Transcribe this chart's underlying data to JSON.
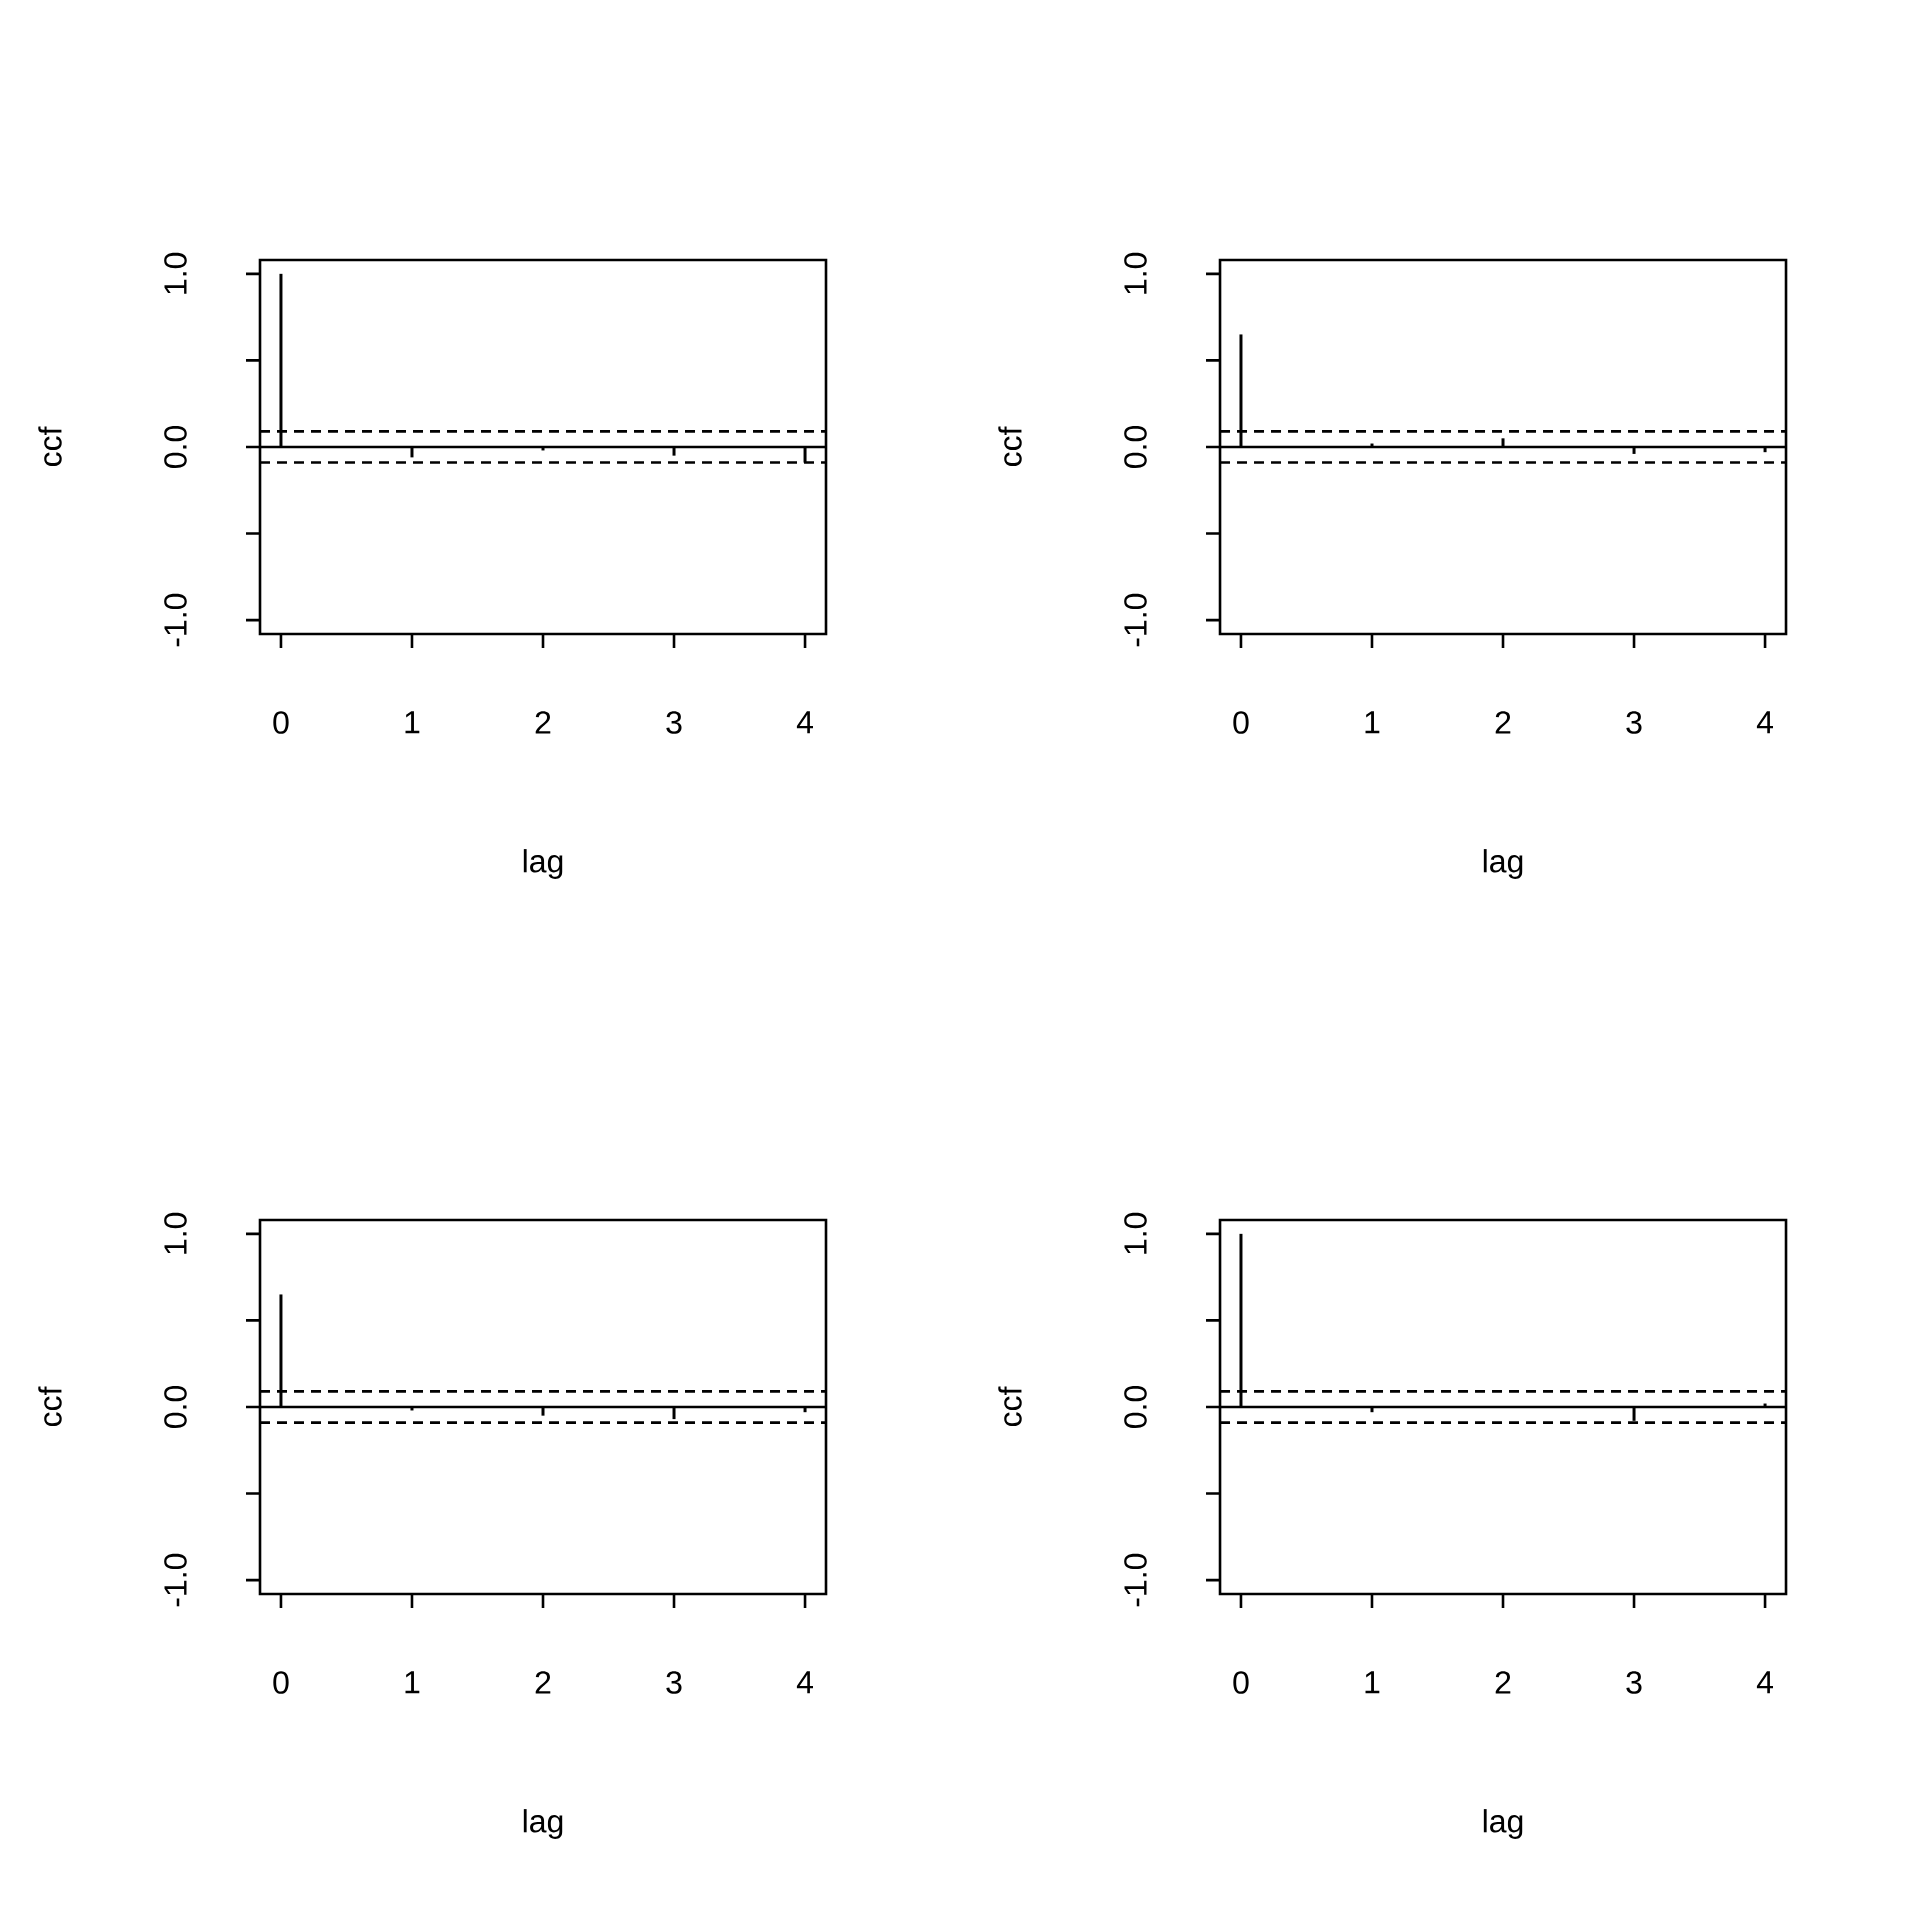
{
  "chart_data": [
    {
      "type": "bar",
      "x": [
        0,
        1,
        2,
        3,
        4
      ],
      "values": [
        1.0,
        -0.06,
        -0.02,
        -0.05,
        -0.09
      ],
      "color": "#000000",
      "xlim": [
        -0.16,
        4.16
      ],
      "xticks": [
        0,
        1,
        2,
        3,
        4
      ],
      "ylim": [
        -1.08,
        1.08
      ],
      "yticks": [
        {
          "value": -1,
          "label": "-1.0"
        },
        {
          "value": -0.5,
          "label": null
        },
        {
          "value": 0,
          "label": "0.0"
        },
        {
          "value": 0.5,
          "label": null
        },
        {
          "value": 1,
          "label": "1.0"
        }
      ],
      "xlabel": "lag",
      "ylabel": "ccf",
      "ref_lines": [
        {
          "axis": "y",
          "value": 0,
          "line_style": "solid"
        },
        {
          "axis": "y",
          "value": 0.09,
          "line_style": "dashed"
        },
        {
          "axis": "y",
          "value": -0.09,
          "line_style": "dashed"
        }
      ]
    },
    {
      "type": "bar",
      "x": [
        0,
        1,
        2,
        3,
        4
      ],
      "values": [
        0.65,
        0.02,
        0.05,
        -0.04,
        -0.03
      ],
      "color": "#000000",
      "xlim": [
        -0.16,
        4.16
      ],
      "xticks": [
        0,
        1,
        2,
        3,
        4
      ],
      "ylim": [
        -1.08,
        1.08
      ],
      "yticks": [
        {
          "value": -1,
          "label": "-1.0"
        },
        {
          "value": -0.5,
          "label": null
        },
        {
          "value": 0,
          "label": "0.0"
        },
        {
          "value": 0.5,
          "label": null
        },
        {
          "value": 1,
          "label": "1.0"
        }
      ],
      "xlabel": "lag",
      "ylabel": "ccf",
      "ref_lines": [
        {
          "axis": "y",
          "value": 0,
          "line_style": "solid"
        },
        {
          "axis": "y",
          "value": 0.09,
          "line_style": "dashed"
        },
        {
          "axis": "y",
          "value": -0.09,
          "line_style": "dashed"
        }
      ]
    },
    {
      "type": "bar",
      "x": [
        0,
        1,
        2,
        3,
        4
      ],
      "values": [
        0.65,
        -0.02,
        -0.05,
        -0.07,
        -0.03
      ],
      "color": "#000000",
      "xlim": [
        -0.16,
        4.16
      ],
      "xticks": [
        0,
        1,
        2,
        3,
        4
      ],
      "ylim": [
        -1.08,
        1.08
      ],
      "yticks": [
        {
          "value": -1,
          "label": "-1.0"
        },
        {
          "value": -0.5,
          "label": null
        },
        {
          "value": 0,
          "label": "0.0"
        },
        {
          "value": 0.5,
          "label": null
        },
        {
          "value": 1,
          "label": "1.0"
        }
      ],
      "xlabel": "lag",
      "ylabel": "ccf",
      "ref_lines": [
        {
          "axis": "y",
          "value": 0,
          "line_style": "solid"
        },
        {
          "axis": "y",
          "value": 0.09,
          "line_style": "dashed"
        },
        {
          "axis": "y",
          "value": -0.09,
          "line_style": "dashed"
        }
      ]
    },
    {
      "type": "bar",
      "x": [
        0,
        1,
        2,
        3,
        4
      ],
      "values": [
        1.0,
        -0.03,
        0.0,
        -0.08,
        0.02
      ],
      "color": "#000000",
      "xlim": [
        -0.16,
        4.16
      ],
      "xticks": [
        0,
        1,
        2,
        3,
        4
      ],
      "ylim": [
        -1.08,
        1.08
      ],
      "yticks": [
        {
          "value": -1,
          "label": "-1.0"
        },
        {
          "value": -0.5,
          "label": null
        },
        {
          "value": 0,
          "label": "0.0"
        },
        {
          "value": 0.5,
          "label": null
        },
        {
          "value": 1,
          "label": "1.0"
        }
      ],
      "xlabel": "lag",
      "ylabel": "ccf",
      "ref_lines": [
        {
          "axis": "y",
          "value": 0,
          "line_style": "solid"
        },
        {
          "axis": "y",
          "value": 0.09,
          "line_style": "dashed"
        },
        {
          "axis": "y",
          "value": -0.09,
          "line_style": "dashed"
        }
      ]
    }
  ]
}
